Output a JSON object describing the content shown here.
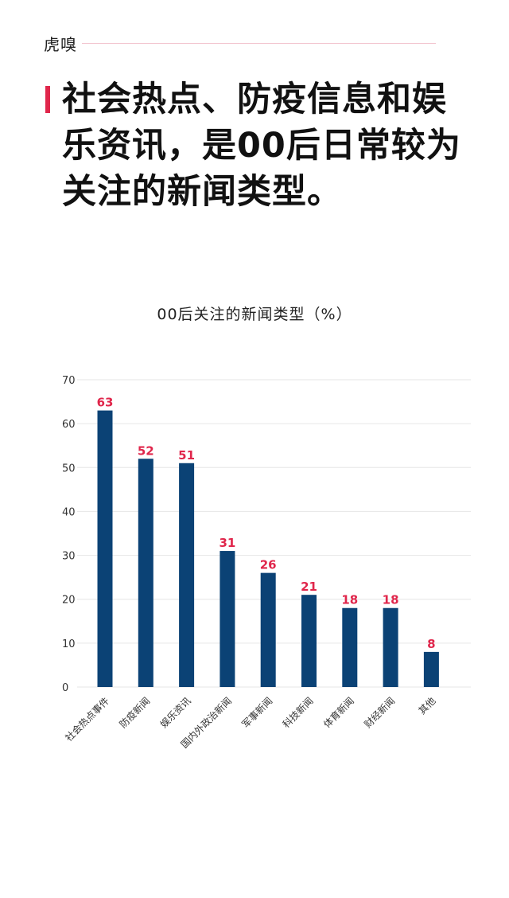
{
  "brand": "虎嗅",
  "headline": "社会热点、防疫信息和娱乐资讯，是00后日常较为关注的新闻类型。",
  "chart_data": {
    "type": "bar",
    "title": "00后关注的新闻类型（%）",
    "categories": [
      "社会热点事件",
      "防疫新闻",
      "娱乐资讯",
      "国内外政治新闻",
      "军事新闻",
      "科技新闻",
      "体育新闻",
      "财经新闻",
      "其他"
    ],
    "values": [
      63,
      52,
      51,
      31,
      26,
      21,
      18,
      18,
      8
    ],
    "value_labels": [
      "63",
      "52",
      "51",
      "31",
      "26",
      "21",
      "18",
      "18",
      "8"
    ],
    "yticks": [
      "0",
      "10",
      "20",
      "30",
      "40",
      "50",
      "60",
      "70"
    ],
    "ylim": [
      0,
      70
    ],
    "grid": true,
    "bar_color": "#0b4275",
    "label_color": "#e0264b"
  }
}
